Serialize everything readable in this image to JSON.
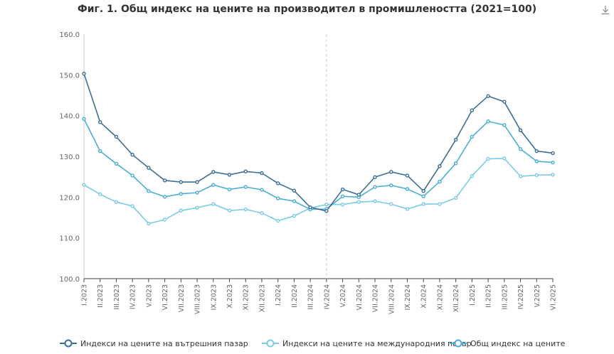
{
  "chart_data": {
    "type": "line",
    "title": "Фиг. 1. Общ индекс на цените на производител в промишлеността (2021=100)",
    "x": [
      "I.2023",
      "II.2023",
      "III.2023",
      "IV.2023",
      "V.2023",
      "VI.2023",
      "VII.2023",
      "VIII.2023",
      "IX.2023",
      "X.2023",
      "XI.2023",
      "XII.2023",
      "I.2024",
      "II.2024",
      "III.2024",
      "IV.2024",
      "V.2024",
      "VI.2024",
      "VII.2024",
      "VIII.2024",
      "IX.2024",
      "X.2024",
      "XI.2024",
      "XII.2024",
      "I.2025",
      "II.2025",
      "III.2025",
      "IV.2025",
      "V.2025",
      "VI.2025"
    ],
    "ylim": [
      100,
      160
    ],
    "yticks": [
      "100.0",
      "110.0",
      "120.0",
      "130.0",
      "140.0",
      "150.0",
      "160.0"
    ],
    "grid": false,
    "legend_position": "bottom",
    "marker_line_index": 15,
    "series": [
      {
        "name": "Индекси на цените на вътрешния пазар",
        "color": "#3c6e96",
        "values": [
          150.3,
          138.4,
          134.8,
          130.4,
          127.2,
          124.1,
          123.7,
          123.7,
          126.2,
          125.5,
          126.3,
          125.9,
          123.4,
          121.6,
          117.5,
          116.6,
          121.9,
          120.6,
          124.9,
          126.2,
          125.3,
          121.5,
          127.6,
          134.1,
          141.3,
          144.8,
          143.4,
          136.4,
          131.3,
          130.8
        ]
      },
      {
        "name": "Индекси на цените на международния пазар",
        "color": "#7bcbe8",
        "values": [
          123.0,
          120.7,
          118.8,
          117.8,
          113.5,
          114.5,
          116.7,
          117.4,
          118.3,
          116.7,
          117.0,
          116.1,
          114.2,
          115.4,
          117.3,
          118.2,
          118.2,
          118.8,
          119.0,
          118.3,
          117.1,
          118.3,
          118.3,
          119.8,
          125.2,
          129.4,
          129.5,
          125.1,
          125.4,
          125.5
        ]
      },
      {
        "name": "Общ индекс на цените",
        "color": "#4aaed6",
        "values": [
          139.2,
          131.3,
          128.2,
          125.3,
          121.5,
          120.1,
          120.8,
          121.1,
          123.0,
          121.9,
          122.5,
          121.8,
          119.7,
          119.0,
          117.0,
          117.1,
          120.2,
          120.0,
          122.5,
          122.9,
          122.0,
          120.2,
          123.8,
          128.3,
          134.8,
          138.6,
          137.7,
          131.8,
          128.8,
          128.5
        ]
      }
    ]
  },
  "legend": {
    "item1_label": "Индекси на цените на вътрешния пазар",
    "item2_label": "Индекси на цените на международния пазар",
    "item3_label": "Общ индекс на цените"
  },
  "icons": {
    "download": "download-icon"
  }
}
